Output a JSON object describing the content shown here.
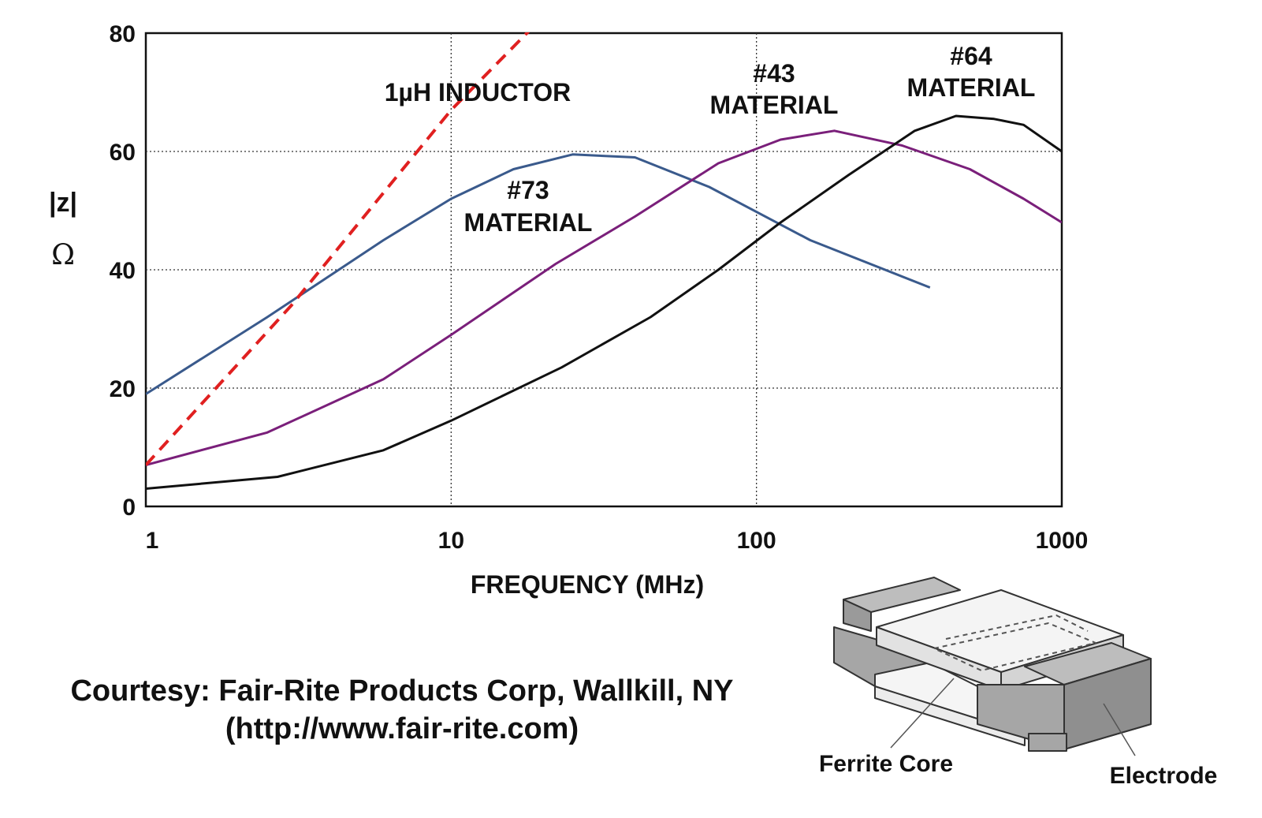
{
  "chart_data": {
    "type": "line",
    "xlabel": "FREQUENCY (MHz)",
    "ylabel": "|z|",
    "ylabel_unit": "Ω",
    "xscale": "log",
    "xlim": [
      1,
      1000
    ],
    "ylim": [
      0,
      80
    ],
    "x_ticks": [
      "1",
      "10",
      "100",
      "1000"
    ],
    "y_ticks": [
      "0",
      "20",
      "40",
      "60",
      "80"
    ],
    "grid": "dotted",
    "series": [
      {
        "name": "#73 MATERIAL",
        "color": "#3a5a8c",
        "style": "solid",
        "x": [
          1,
          2.5,
          6,
          10,
          16,
          25,
          40,
          70,
          150,
          370
        ],
        "y": [
          19,
          32,
          45,
          52,
          57,
          59.5,
          59,
          54,
          45,
          37
        ]
      },
      {
        "name": "#43 MATERIAL",
        "color": "#7a1f7a",
        "style": "solid",
        "x": [
          1,
          2.5,
          6,
          10,
          22,
          40,
          75,
          120,
          180,
          300,
          500,
          750,
          1000
        ],
        "y": [
          7,
          12.5,
          21.5,
          29,
          41,
          49,
          58,
          62,
          63.5,
          61,
          57,
          52,
          48
        ]
      },
      {
        "name": "#64 MATERIAL",
        "color": "#111111",
        "style": "solid",
        "x": [
          1,
          2.7,
          6,
          10,
          23,
          45,
          75,
          120,
          200,
          330,
          450,
          600,
          750,
          1000
        ],
        "y": [
          3,
          5,
          9.5,
          14.5,
          23.5,
          32,
          40,
          48,
          56,
          63.5,
          66,
          65.5,
          64.5,
          60
        ]
      },
      {
        "name": "1µH INDUCTOR",
        "color": "#e02020",
        "style": "dashed",
        "x": [
          1,
          3,
          10,
          18.5
        ],
        "y": [
          7,
          34,
          67,
          81
        ]
      }
    ],
    "annotations": {
      "inductor": "1µH INDUCTOR",
      "m73": [
        "#73",
        "MATERIAL"
      ],
      "m43": [
        "#43",
        "MATERIAL"
      ],
      "m64": [
        "#64",
        "MATERIAL"
      ]
    }
  },
  "courtesy": {
    "line1": "Courtesy: Fair-Rite Products Corp, Wallkill, NY",
    "line2": "(http://www.fair-rite.com)"
  },
  "illustration": {
    "labels": {
      "ferrite_core": "Ferrite Core",
      "electrode": "Electrode"
    },
    "colors": {
      "electrode": "#a6a6a6",
      "ferrite": "#f2f2f2",
      "outline": "#333333"
    }
  }
}
